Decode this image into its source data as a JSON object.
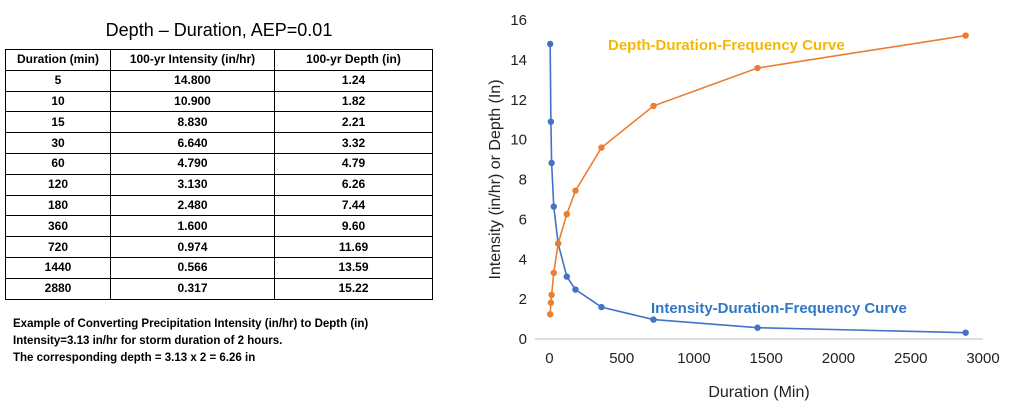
{
  "table": {
    "title": "Depth – Duration, AEP=0.01",
    "headers": [
      "Duration (min)",
      "100-yr Intensity (in/hr)",
      "100-yr Depth (in)"
    ],
    "rows": [
      [
        "5",
        "14.800",
        "1.24"
      ],
      [
        "10",
        "10.900",
        "1.82"
      ],
      [
        "15",
        "8.830",
        "2.21"
      ],
      [
        "30",
        "6.640",
        "3.32"
      ],
      [
        "60",
        "4.790",
        "4.79"
      ],
      [
        "120",
        "3.130",
        "6.26"
      ],
      [
        "180",
        "2.480",
        "7.44"
      ],
      [
        "360",
        "1.600",
        "9.60"
      ],
      [
        "720",
        "0.974",
        "11.69"
      ],
      [
        "1440",
        "0.566",
        "13.59"
      ],
      [
        "2880",
        "0.317",
        "15.22"
      ]
    ]
  },
  "note": {
    "line1": "Example of Converting Precipitation Intensity (in/hr) to Depth (in)",
    "line2": "Intensity=3.13 in/hr for storm duration of 2 hours.",
    "line3": "The corresponding depth = 3.13 x 2 = 6.26 in"
  },
  "chart_data": {
    "type": "scatter",
    "title": "",
    "xlabel": "Duration (Min)",
    "ylabel": "Intensity (in/hr) or Depth (In)",
    "xlim": [
      -100,
      3000
    ],
    "ylim": [
      0,
      16
    ],
    "xticks": [
      0,
      500,
      1000,
      1500,
      2000,
      2500,
      3000
    ],
    "yticks": [
      0,
      2,
      4,
      6,
      8,
      10,
      12,
      14,
      16
    ],
    "x": [
      5,
      10,
      15,
      30,
      60,
      120,
      180,
      360,
      720,
      1440,
      2880
    ],
    "series": [
      {
        "name": "Intensity-Duration-Frequency Curve",
        "color": "#4472C4",
        "values": [
          14.8,
          10.9,
          8.83,
          6.64,
          4.79,
          3.13,
          2.48,
          1.6,
          0.974,
          0.566,
          0.317
        ]
      },
      {
        "name": "Depth-Duration-Frequency Curve",
        "color": "#ED7D31",
        "values": [
          1.24,
          1.82,
          2.21,
          3.32,
          4.79,
          6.26,
          7.44,
          9.6,
          11.69,
          13.59,
          15.22
        ]
      }
    ],
    "labels": {
      "depth_curve": "Depth-Duration-Frequency Curve",
      "intensity_curve": "Intensity-Duration-Frequency Curve"
    },
    "label_colors": {
      "depth_curve": "#F5B800",
      "intensity_curve": "#2F78C8"
    }
  }
}
